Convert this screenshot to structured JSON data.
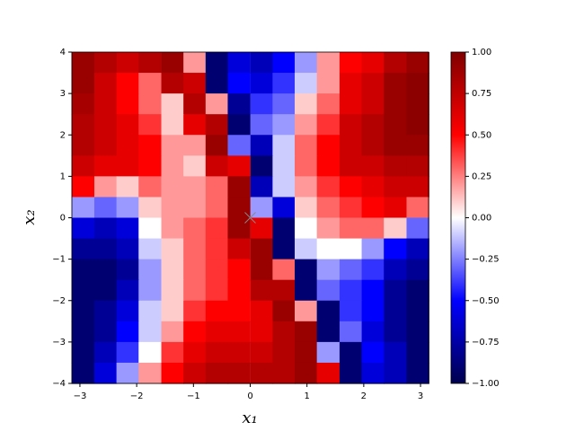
{
  "chart_data": {
    "type": "heatmap",
    "colormap": "seismic",
    "xlabel": "x₁",
    "ylabel": "x₂",
    "xlim": [
      -3.1416,
      3.1416
    ],
    "ylim": [
      -4,
      4
    ],
    "clim": [
      -1,
      1
    ],
    "xticks": [
      {
        "value": -3,
        "label": "−3"
      },
      {
        "value": -2,
        "label": "−2"
      },
      {
        "value": -1,
        "label": "−1"
      },
      0,
      1,
      2,
      3
    ],
    "yticks": [
      {
        "value": -4,
        "label": "−4"
      },
      {
        "value": -3,
        "label": "−3"
      },
      {
        "value": -2,
        "label": "−2"
      },
      {
        "value": -1,
        "label": "−1"
      },
      0,
      1,
      2,
      3,
      4
    ],
    "cticks": [
      {
        "value": -1,
        "label": "−1.00"
      },
      {
        "value": -0.75,
        "label": "−0.75"
      },
      {
        "value": -0.5,
        "label": "−0.50"
      },
      {
        "value": -0.25,
        "label": "−0.25"
      },
      {
        "value": 0,
        "label": "0.00"
      },
      {
        "value": 0.25,
        "label": "0.25"
      },
      {
        "value": 0.5,
        "label": "0.50"
      },
      {
        "value": 0.75,
        "label": "0.75"
      },
      {
        "value": 1,
        "label": "1.00"
      }
    ],
    "x": [
      -2.95,
      -2.55,
      -2.16,
      -1.77,
      -1.37,
      -0.98,
      -0.59,
      -0.2,
      0.2,
      0.59,
      0.98,
      1.37,
      1.77,
      2.16,
      2.55,
      2.95
    ],
    "y": [
      3.75,
      3.25,
      2.75,
      2.25,
      1.75,
      1.25,
      0.75,
      0.25,
      -0.25,
      -0.75,
      -1.25,
      -1.75,
      -2.25,
      -2.75,
      -3.25,
      -3.75
    ],
    "z": [
      [
        0.9,
        0.8,
        0.7,
        0.8,
        0.9,
        0.2,
        -0.9,
        -0.6,
        -0.7,
        -0.5,
        -0.2,
        0.2,
        0.5,
        0.6,
        0.8,
        0.9
      ],
      [
        0.9,
        0.7,
        0.5,
        0.3,
        0.8,
        0.7,
        -0.9,
        -0.5,
        -0.6,
        -0.4,
        -0.1,
        0.2,
        0.6,
        0.7,
        0.9,
        0.95
      ],
      [
        0.85,
        0.7,
        0.5,
        0.3,
        0.1,
        0.8,
        0.2,
        -0.8,
        -0.4,
        -0.3,
        0.1,
        0.3,
        0.6,
        0.7,
        0.9,
        0.95
      ],
      [
        0.8,
        0.7,
        0.6,
        0.4,
        0.1,
        0.6,
        0.8,
        -0.9,
        -0.3,
        -0.2,
        0.2,
        0.4,
        0.7,
        0.8,
        0.9,
        0.95
      ],
      [
        0.8,
        0.7,
        0.6,
        0.5,
        0.2,
        0.2,
        0.9,
        -0.3,
        -0.7,
        -0.1,
        0.3,
        0.5,
        0.7,
        0.8,
        0.9,
        0.9
      ],
      [
        0.7,
        0.6,
        0.6,
        0.5,
        0.2,
        0.1,
        0.7,
        0.6,
        -0.9,
        -0.1,
        0.3,
        0.5,
        0.7,
        0.7,
        0.8,
        0.8
      ],
      [
        0.5,
        0.2,
        0.1,
        0.3,
        0.2,
        0.2,
        0.3,
        0.9,
        -0.7,
        -0.1,
        0.2,
        0.4,
        0.5,
        0.6,
        0.7,
        0.7
      ],
      [
        -0.2,
        -0.3,
        -0.2,
        0.1,
        0.2,
        0.2,
        0.3,
        0.9,
        -0.2,
        -0.6,
        0.1,
        0.3,
        0.4,
        0.5,
        0.6,
        0.3
      ],
      [
        -0.6,
        -0.7,
        -0.6,
        0,
        0.2,
        0.3,
        0.4,
        0.9,
        0.6,
        -0.9,
        0,
        0.2,
        0.3,
        0.3,
        0.1,
        -0.3
      ],
      [
        -0.8,
        -0.8,
        -0.7,
        -0.1,
        0.1,
        0.3,
        0.4,
        0.7,
        0.9,
        -0.9,
        -0.1,
        0,
        0,
        -0.2,
        -0.5,
        -0.7
      ],
      [
        -0.9,
        -0.9,
        -0.8,
        -0.2,
        0.1,
        0.3,
        0.4,
        0.5,
        0.9,
        0.3,
        -0.9,
        -0.2,
        -0.3,
        -0.4,
        -0.7,
        -0.8
      ],
      [
        -0.9,
        -0.9,
        -0.7,
        -0.2,
        0.1,
        0.3,
        0.4,
        0.5,
        0.8,
        0.8,
        -0.9,
        -0.3,
        -0.4,
        -0.5,
        -0.8,
        -0.9
      ],
      [
        -0.9,
        -0.8,
        -0.6,
        -0.1,
        0.1,
        0.4,
        0.5,
        0.5,
        0.6,
        0.9,
        0.2,
        -0.9,
        -0.4,
        -0.5,
        -0.8,
        -0.9
      ],
      [
        -0.9,
        -0.8,
        -0.5,
        -0.1,
        0.2,
        0.5,
        0.6,
        0.6,
        0.6,
        0.8,
        0.9,
        -0.9,
        -0.3,
        -0.6,
        -0.8,
        -0.9
      ],
      [
        -0.9,
        -0.7,
        -0.4,
        0,
        0.4,
        0.6,
        0.7,
        0.7,
        0.7,
        0.8,
        0.9,
        -0.2,
        -0.9,
        -0.5,
        -0.7,
        -0.9
      ],
      [
        -0.9,
        -0.6,
        -0.2,
        0.2,
        0.5,
        0.7,
        0.8,
        0.8,
        0.8,
        0.8,
        0.9,
        0.6,
        -0.9,
        -0.6,
        -0.7,
        -0.9
      ]
    ],
    "marker_x": [
      0
    ],
    "marker_y": [
      0
    ]
  }
}
